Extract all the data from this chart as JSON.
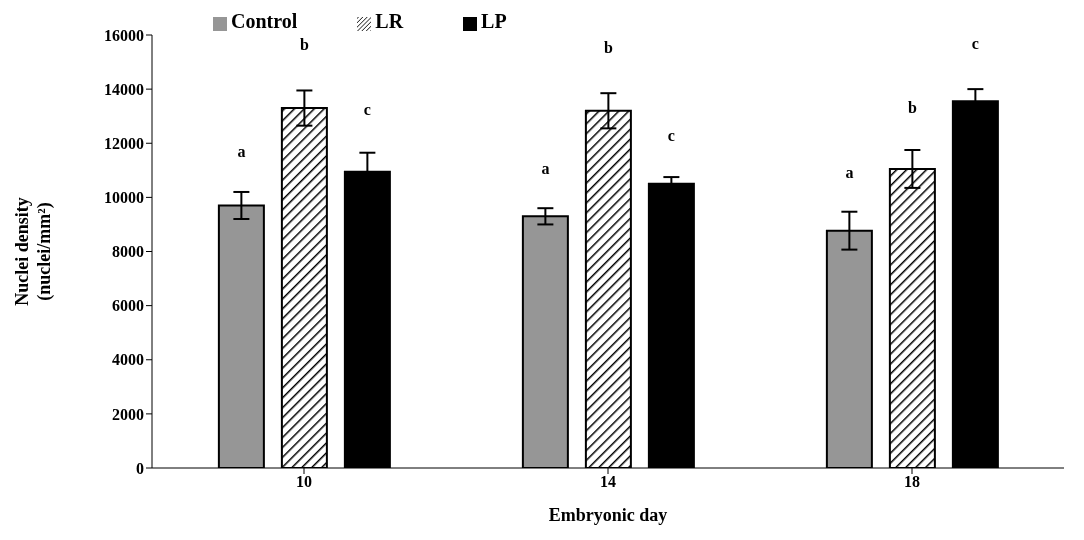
{
  "chart_data": {
    "type": "bar",
    "xlabel": "Embryonic day",
    "ylabel": "Nuclei density (nuclei/mm²)",
    "categories": [
      "10",
      "14",
      "18"
    ],
    "series": [
      {
        "name": "Control",
        "color": "#969696",
        "values": [
          9700,
          9300,
          8770
        ],
        "errors": [
          500,
          300,
          700
        ]
      },
      {
        "name": "LR",
        "color": "#000000",
        "values": [
          13300,
          13200,
          11050
        ],
        "errors": [
          650,
          650,
          700
        ]
      },
      {
        "name": "LP",
        "color": "#000000",
        "values": [
          10950,
          10500,
          13550
        ],
        "errors": [
          700,
          250,
          450
        ]
      }
    ],
    "ylim": [
      0,
      16000
    ],
    "yticks": [
      0,
      2000,
      4000,
      6000,
      8000,
      10000,
      12000,
      14000,
      16000
    ],
    "grid": false,
    "legend": "top left",
    "annotations": [
      "a",
      "b",
      "c",
      "a",
      "b",
      "c",
      "a",
      "b",
      "c"
    ]
  }
}
